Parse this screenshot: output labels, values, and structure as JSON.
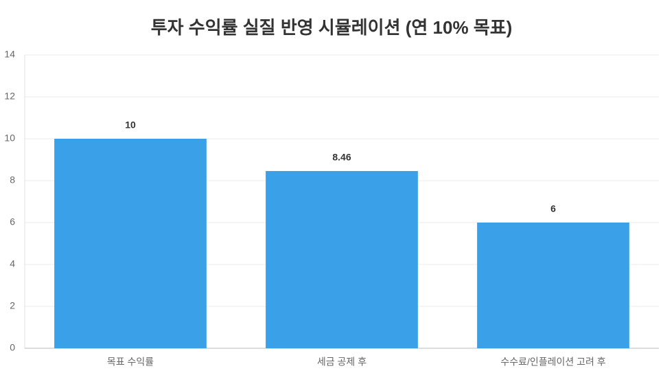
{
  "chart_data": {
    "type": "bar",
    "title": "투자 수익률 실질 반영 시뮬레이션 (연 10% 목표)",
    "categories": [
      "목표 수익률",
      "세금 공제 후",
      "수수료/인플레이션 고려 후"
    ],
    "values": [
      10,
      8.46,
      6
    ],
    "color": "#3aa1e8",
    "ylim": [
      0,
      14
    ],
    "yticks": [
      0,
      2,
      4,
      6,
      8,
      10,
      12,
      14
    ],
    "grid": true
  }
}
